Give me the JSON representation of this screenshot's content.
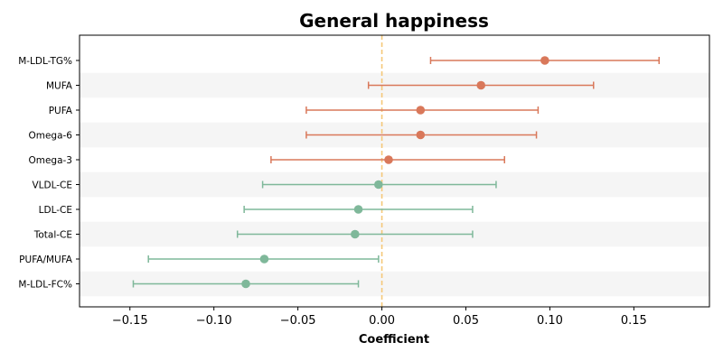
{
  "chart_data": {
    "type": "scatter",
    "subtype": "forest-plot",
    "title": "General happiness",
    "xlabel": "Coefficient",
    "ylabel": "",
    "xlim": [
      -0.18,
      0.195
    ],
    "xticks": [
      -0.15,
      -0.1,
      -0.05,
      0.0,
      0.05,
      0.1,
      0.15
    ],
    "xtick_labels": [
      "−0.15",
      "−0.10",
      "−0.05",
      "0.00",
      "0.05",
      "0.10",
      "0.15"
    ],
    "reference_line": {
      "x": 0,
      "style": "dashed",
      "color": "#f5c878"
    },
    "grid": false,
    "row_shading": "alternating",
    "colors": {
      "positive": "#d9785a",
      "negative": "#7fb89a",
      "band": "#f5f5f5"
    },
    "series": [
      {
        "label": "M-LDL-TG%",
        "estimate": 0.097,
        "lower": 0.029,
        "upper": 0.165,
        "group": "positive"
      },
      {
        "label": "MUFA",
        "estimate": 0.059,
        "lower": -0.008,
        "upper": 0.126,
        "group": "positive"
      },
      {
        "label": "PUFA",
        "estimate": 0.023,
        "lower": -0.045,
        "upper": 0.093,
        "group": "positive"
      },
      {
        "label": "Omega-6",
        "estimate": 0.023,
        "lower": -0.045,
        "upper": 0.092,
        "group": "positive"
      },
      {
        "label": "Omega-3",
        "estimate": 0.004,
        "lower": -0.066,
        "upper": 0.073,
        "group": "positive"
      },
      {
        "label": "VLDL-CE",
        "estimate": -0.002,
        "lower": -0.071,
        "upper": 0.068,
        "group": "negative"
      },
      {
        "label": "LDL-CE",
        "estimate": -0.014,
        "lower": -0.082,
        "upper": 0.054,
        "group": "negative"
      },
      {
        "label": "Total-CE",
        "estimate": -0.016,
        "lower": -0.086,
        "upper": 0.054,
        "group": "negative"
      },
      {
        "label": "PUFA/MUFA",
        "estimate": -0.07,
        "lower": -0.139,
        "upper": -0.002,
        "group": "negative"
      },
      {
        "label": "M-LDL-FC%",
        "estimate": -0.081,
        "lower": -0.148,
        "upper": -0.014,
        "group": "negative"
      }
    ]
  }
}
